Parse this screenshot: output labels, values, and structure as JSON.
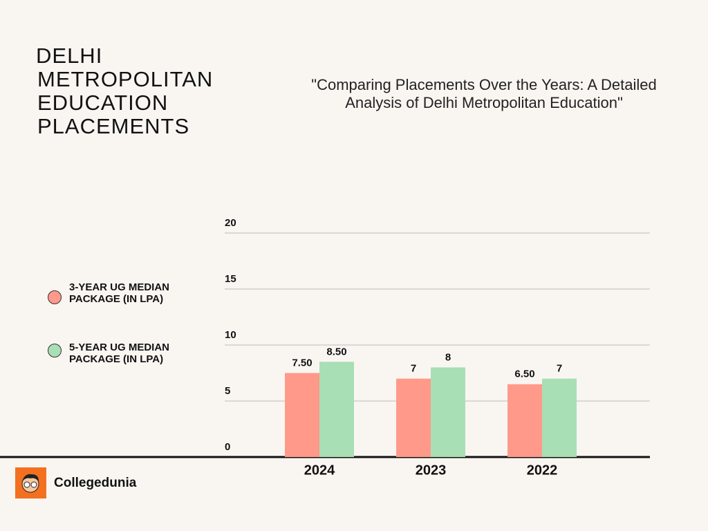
{
  "chart_data": {
    "type": "bar",
    "title": "DELHI METROPOLITAN EDUCATION PLACEMENTS",
    "subtitle": "\"Comparing Placements Over the Years: A Detailed Analysis of Delhi Metropolitan Education\"",
    "categories": [
      "2024",
      "2023",
      "2022"
    ],
    "series": [
      {
        "name": "3-YEAR UG MEDIAN PACKAGE (IN LPA)",
        "color": "#ff9a8a",
        "values": [
          7.5,
          7,
          6.5
        ],
        "value_labels": [
          "7.50",
          "7",
          "6.50"
        ]
      },
      {
        "name": "5-YEAR UG MEDIAN  PACKAGE (IN LPA)",
        "color": "#a8dfb4",
        "values": [
          8.5,
          8,
          7
        ],
        "value_labels": [
          "8.50",
          "8",
          "7"
        ]
      }
    ],
    "ylim": [
      0,
      20
    ],
    "yticks": [
      0,
      5,
      10,
      15,
      20
    ],
    "grid": true
  },
  "brand": "Collegedunia"
}
